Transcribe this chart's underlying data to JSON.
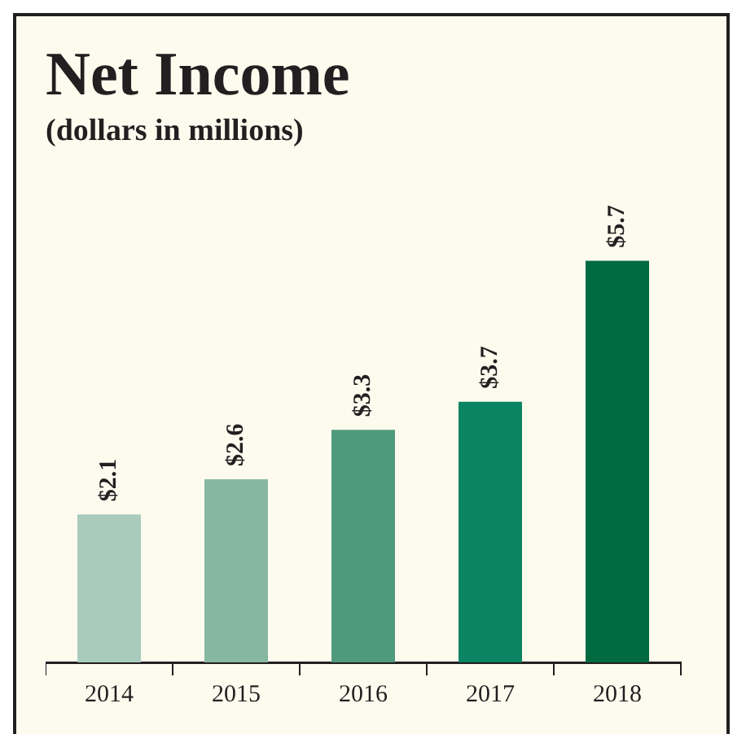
{
  "chart_data": {
    "type": "bar",
    "title": "Net Income",
    "subtitle": "(dollars in millions)",
    "categories": [
      "2014",
      "2015",
      "2016",
      "2017",
      "2018"
    ],
    "values": [
      2.1,
      2.6,
      3.3,
      3.7,
      5.7
    ],
    "value_labels": [
      "$2.1",
      "$2.6",
      "$3.3",
      "$3.7",
      "$5.7"
    ],
    "colors": [
      "#a9cbbd",
      "#86b7a0",
      "#4f9a7c",
      "#0a8462",
      "#006b40"
    ],
    "grid": false,
    "legend": false
  }
}
